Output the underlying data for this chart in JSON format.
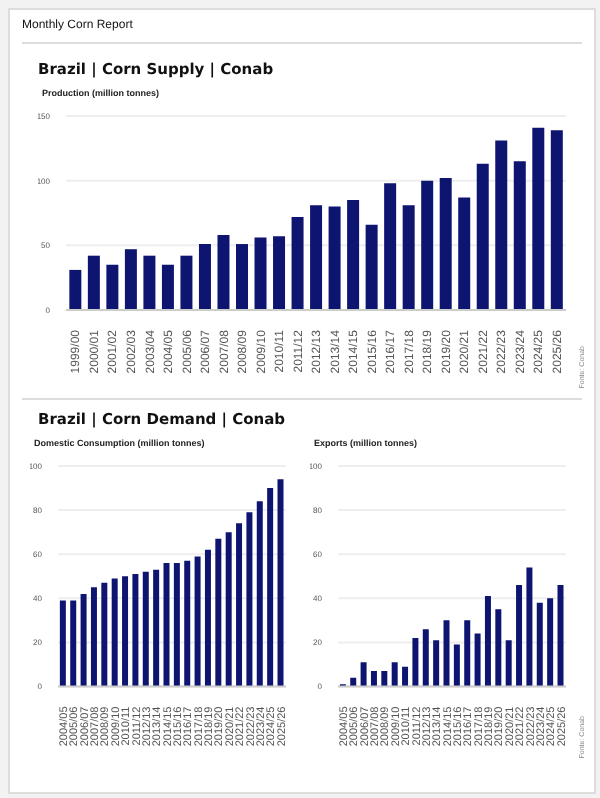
{
  "chart_data": [
    {
      "type": "bar",
      "title": "Monthly Corn Report",
      "subtitle": "Brazil | Corn Supply | Conab",
      "ylabel": "Production (million tonnes)",
      "categories": [
        "1999/00",
        "2000/01",
        "2001/02",
        "2002/03",
        "2003/04",
        "2004/05",
        "2005/06",
        "2006/07",
        "2007/08",
        "2008/09",
        "2009/10",
        "2010/11",
        "2011/12",
        "2012/13",
        "2013/14",
        "2014/15",
        "2015/16",
        "2016/17",
        "2017/18",
        "2018/19",
        "2019/20",
        "2020/21",
        "2021/22",
        "2022/23",
        "2023/24",
        "2024/25",
        "2025/26"
      ],
      "values": [
        31,
        42,
        35,
        47,
        42,
        35,
        42,
        51,
        58,
        51,
        56,
        57,
        72,
        81,
        80,
        85,
        66,
        98,
        81,
        100,
        102,
        87,
        113,
        131,
        115,
        141,
        139
      ],
      "color": "#0e1571",
      "ylim": [
        0,
        150
      ],
      "yticks": [
        0,
        50,
        100,
        150
      ],
      "grid": "y",
      "annotations": [
        "Fonte: Conab"
      ]
    },
    {
      "type": "bar",
      "title": "Brazil | Corn Demand | Conab",
      "ylabel": "Domestic Consumption (million tonnes)",
      "categories": [
        "2004/05",
        "2005/06",
        "2006/07",
        "2007/08",
        "2008/09",
        "2009/10",
        "2010/11",
        "2011/12",
        "2012/13",
        "2013/14",
        "2014/15",
        "2015/16",
        "2016/17",
        "2017/18",
        "2018/19",
        "2019/20",
        "2020/21",
        "2021/22",
        "2022/23",
        "2023/24",
        "2024/25",
        "2025/26"
      ],
      "values": [
        39,
        39,
        42,
        45,
        47,
        49,
        50,
        51,
        52,
        53,
        56,
        56,
        57,
        59,
        62,
        67,
        70,
        74,
        79,
        84,
        90,
        94
      ],
      "color": "#0e1571",
      "ylim": [
        0,
        100
      ],
      "yticks": [
        0,
        20,
        40,
        60,
        80,
        100
      ],
      "grid": "y"
    },
    {
      "type": "bar",
      "ylabel": "Exports (million tonnes)",
      "categories": [
        "2004/05",
        "2005/06",
        "2006/07",
        "2007/08",
        "2008/09",
        "2009/10",
        "2010/11",
        "2011/12",
        "2012/13",
        "2013/14",
        "2014/15",
        "2015/16",
        "2016/17",
        "2017/18",
        "2018/19",
        "2019/20",
        "2020/21",
        "2021/22",
        "2022/23",
        "2023/24",
        "2024/25",
        "2025/26"
      ],
      "values": [
        1,
        4,
        11,
        7,
        7,
        11,
        9,
        22,
        26,
        21,
        30,
        19,
        30,
        24,
        41,
        35,
        21,
        46,
        54,
        38,
        40,
        46
      ],
      "color": "#0e1571",
      "ylim": [
        0,
        100
      ],
      "yticks": [
        0,
        20,
        40,
        60,
        80,
        100
      ],
      "grid": "y",
      "annotations": [
        "Fonte: Conab"
      ]
    }
  ]
}
